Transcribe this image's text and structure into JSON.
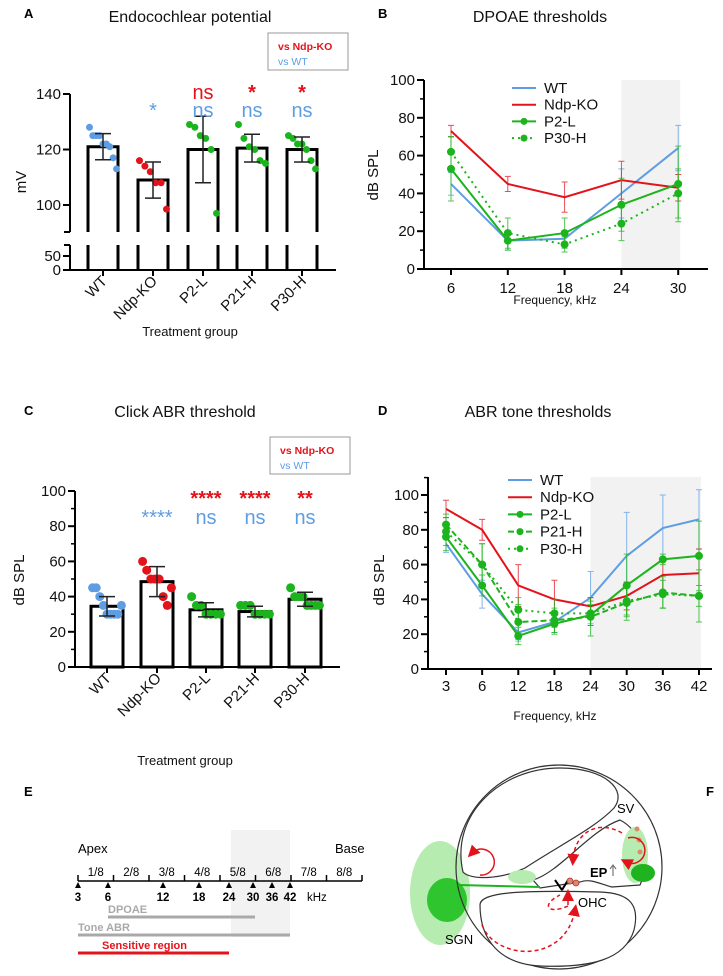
{
  "colors": {
    "wt": "#5f9de3",
    "ko": "#e3131b",
    "treated": "#1cb41c",
    "shade": "#f2f2f2",
    "grey_bar": "#a9a9a9"
  },
  "panel_labels": [
    "A",
    "B",
    "C",
    "D",
    "E",
    "F"
  ],
  "chart_data": [
    {
      "id": "A",
      "type": "bar",
      "title": "Endocochlear potential",
      "ylabel": "mV",
      "xlabel": "Treatment group",
      "y_axis_break": [
        50,
        90
      ],
      "yticks": [
        0,
        50,
        100,
        120,
        140
      ],
      "ylim": [
        0,
        140
      ],
      "categories": [
        "WT",
        "Ndp-KO",
        "P2-L",
        "P21-H",
        "P30-H"
      ],
      "point_colors": [
        "wt",
        "ko",
        "treated",
        "treated",
        "treated"
      ],
      "mean": [
        121,
        109,
        120,
        120.5,
        120
      ],
      "sd": [
        4.7,
        6.5,
        12,
        5,
        4.5
      ],
      "points": [
        [
          128,
          125,
          125,
          125,
          122,
          122,
          121,
          117,
          113
        ],
        [
          116,
          114,
          112,
          108,
          108,
          98.5
        ],
        [
          129,
          128,
          125,
          124,
          120,
          97
        ],
        [
          129,
          124,
          121,
          120,
          116,
          115
        ],
        [
          125,
          124,
          122,
          122,
          120,
          116,
          113
        ]
      ],
      "legend": {
        "vs_ko": "vs Ndp-KO",
        "vs_wt": "vs WT"
      },
      "sig_vs_ko": [
        "",
        "",
        "ns",
        "*",
        "*"
      ],
      "sig_vs_wt": [
        "",
        "*",
        "ns",
        "ns",
        "ns"
      ]
    },
    {
      "id": "B",
      "type": "line",
      "title": "DPOAE thresholds",
      "ylabel": "dB SPL",
      "xlabel": "Frequency, kHz",
      "ylim": [
        0,
        100
      ],
      "yticks": [
        0,
        20,
        40,
        60,
        80,
        100
      ],
      "x": [
        6,
        12,
        18,
        24,
        30
      ],
      "shaded_x_range": [
        24,
        30
      ],
      "legend_position": "top-center",
      "series": [
        {
          "name": "WT",
          "color": "wt",
          "style": "solid",
          "markers": false,
          "values": [
            45,
            15,
            16,
            40,
            64
          ],
          "sd": [
            6,
            5,
            4,
            13,
            12
          ]
        },
        {
          "name": "Ndp-KO",
          "color": "ko",
          "style": "solid",
          "markers": false,
          "values": [
            73,
            45,
            38,
            47,
            43
          ],
          "sd": [
            3,
            4,
            8,
            10,
            7
          ]
        },
        {
          "name": "P2-L",
          "color": "treated",
          "style": "solid",
          "markers": true,
          "values": [
            53,
            15,
            19,
            34,
            45
          ],
          "sd": [
            17,
            5,
            8,
            14,
            20
          ]
        },
        {
          "name": "P30-H",
          "color": "treated",
          "style": "dotted",
          "markers": true,
          "values": [
            62,
            19,
            13,
            24,
            40
          ],
          "sd": [
            8,
            8,
            4,
            9,
            13
          ]
        }
      ]
    },
    {
      "id": "C",
      "type": "bar",
      "title": "Click ABR threshold",
      "ylabel": "dB SPL",
      "xlabel": "Treatment group",
      "yticks": [
        0,
        20,
        40,
        60,
        80,
        100
      ],
      "ylim": [
        0,
        100
      ],
      "categories": [
        "WT",
        "Ndp-KO",
        "P2-L",
        "P21-H",
        "P30-H"
      ],
      "point_colors": [
        "wt",
        "ko",
        "treated",
        "treated",
        "treated"
      ],
      "mean": [
        34.5,
        48.5,
        32.5,
        31.5,
        38.5
      ],
      "sd": [
        5.5,
        8.5,
        4,
        3,
        4
      ],
      "points": [
        [
          45,
          45,
          40,
          35,
          30,
          30,
          30,
          30,
          35
        ],
        [
          60,
          55,
          50,
          50,
          50,
          40,
          35,
          45
        ],
        [
          40,
          35,
          35,
          30,
          30,
          30,
          30
        ],
        [
          35,
          35,
          35,
          30,
          30,
          30,
          30
        ],
        [
          45,
          40,
          40,
          40,
          35,
          35,
          35,
          35
        ]
      ],
      "legend": {
        "vs_ko": "vs Ndp-KO",
        "vs_wt": "vs WT"
      },
      "sig_vs_ko": [
        "",
        "",
        "****",
        "****",
        "**"
      ],
      "sig_vs_wt": [
        "",
        "****",
        "ns",
        "ns",
        "ns"
      ]
    },
    {
      "id": "D",
      "type": "line",
      "title": "ABR tone thresholds",
      "ylabel": "dB SPL",
      "xlabel": "Frequency, kHz",
      "ylim": [
        0,
        110
      ],
      "yticks": [
        0,
        20,
        40,
        60,
        80,
        100
      ],
      "x": [
        3,
        6,
        12,
        18,
        24,
        30,
        36,
        42
      ],
      "shaded_x_range": [
        24,
        42
      ],
      "legend_position": "top-center",
      "series": [
        {
          "name": "WT",
          "color": "wt",
          "style": "solid",
          "markers": false,
          "values": [
            72,
            43,
            21,
            27,
            41,
            65,
            81,
            86
          ],
          "sd": [
            5,
            8,
            5,
            6,
            15,
            25,
            19,
            17
          ]
        },
        {
          "name": "Ndp-KO",
          "color": "ko",
          "style": "solid",
          "markers": false,
          "values": [
            92,
            80,
            48,
            40,
            36,
            42,
            54,
            55
          ],
          "sd": [
            5,
            6,
            12,
            11,
            5,
            8,
            10,
            14
          ]
        },
        {
          "name": "P2-L",
          "color": "treated",
          "style": "solid",
          "markers": true,
          "values": [
            76,
            48,
            19,
            26,
            31,
            48,
            63,
            65
          ],
          "sd": [
            8,
            6,
            5,
            6,
            6,
            18,
            3,
            20
          ]
        },
        {
          "name": "P21-H",
          "color": "treated",
          "style": "dashed",
          "markers": true,
          "values": [
            83,
            60,
            27,
            28,
            30,
            38,
            44,
            42
          ],
          "sd": [
            6,
            12,
            10,
            7,
            11,
            10,
            9,
            15
          ]
        },
        {
          "name": "P30-H",
          "color": "treated",
          "style": "dotted",
          "markers": true,
          "values": [
            79,
            60,
            34,
            32,
            32,
            39,
            43,
            42
          ],
          "sd": [
            8,
            12,
            7,
            8,
            7,
            8,
            8,
            6
          ]
        }
      ]
    }
  ],
  "panel_e": {
    "apex": "Apex",
    "base": "Base",
    "segments": [
      "1/8",
      "2/8",
      "3/8",
      "4/8",
      "5/8",
      "6/8",
      "7/8",
      "8/8"
    ],
    "frequencies": [
      "3",
      "6",
      "12",
      "18",
      "24",
      "30",
      "36",
      "42"
    ],
    "unit": "kHz",
    "ranges": [
      {
        "label": "DPOAE",
        "from_khz": 6,
        "to_khz": 30,
        "color": "grey_bar"
      },
      {
        "label": "Tone ABR",
        "from_khz": 3,
        "to_khz": 42,
        "color": "grey_bar"
      },
      {
        "label": "Sensitive region",
        "from_khz": 3,
        "to_khz": 24,
        "color": "ko"
      }
    ]
  },
  "panel_f": {
    "sv": "SV",
    "ep": "EP",
    "ohc": "OHC",
    "sgn": "SGN"
  }
}
